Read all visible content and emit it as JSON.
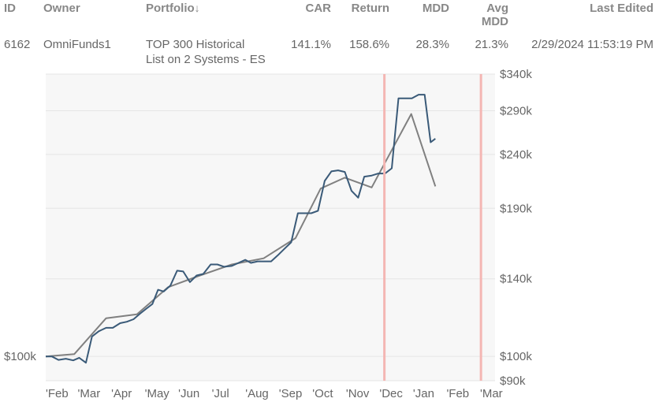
{
  "table": {
    "headers": {
      "id": "ID",
      "owner": "Owner",
      "portfolio": "Portfolio",
      "sort_indicator": "↓",
      "car": "CAR",
      "return": "Return",
      "mdd": "MDD",
      "avg_mdd_line1": "Avg",
      "avg_mdd_line2": "MDD",
      "last_edited": "Last Edited"
    },
    "row": {
      "id": "6162",
      "owner": "OmniFunds1",
      "portfolio_line1": "TOP 300 Historical",
      "portfolio_line2": "List on 2 Systems - ES",
      "car": "141.1%",
      "return": "158.6%",
      "mdd": "28.3%",
      "avg_mdd": "21.3%",
      "last_edited": "2/29/2024 11:53:19 PM"
    }
  },
  "chart_data": {
    "type": "line",
    "y_scale": "log",
    "ylim": [
      90000,
      340000
    ],
    "right_ticks": [
      {
        "value": 340000,
        "label": "$340k"
      },
      {
        "value": 290000,
        "label": "$290k"
      },
      {
        "value": 240000,
        "label": "$240k"
      },
      {
        "value": 190000,
        "label": "$190k"
      },
      {
        "value": 140000,
        "label": "$140k"
      },
      {
        "value": 100000,
        "label": "$100k"
      },
      {
        "value": 90000,
        "label": "$90k"
      }
    ],
    "left_tick": {
      "value": 100000,
      "label": "$100k"
    },
    "x_labels": [
      "'Feb",
      "'Mar",
      "'Apr",
      "'May",
      "'Jun",
      "'Jul",
      "'Aug",
      "'Sep",
      "'Oct",
      "'Nov",
      "'Dec",
      "'Jan",
      "'Feb",
      "'Mar"
    ],
    "x_range": [
      0,
      13.4
    ],
    "highlight_lines_x": [
      10.1,
      12.98
    ],
    "series": [
      {
        "role": "equity",
        "color": "#3a5a78",
        "points": [
          [
            0.0,
            100000
          ],
          [
            0.18,
            100000
          ],
          [
            0.38,
            98500
          ],
          [
            0.6,
            99000
          ],
          [
            0.82,
            98300
          ],
          [
            1.0,
            99400
          ],
          [
            1.2,
            97300
          ],
          [
            1.38,
            109000
          ],
          [
            1.58,
            111500
          ],
          [
            1.8,
            113200
          ],
          [
            2.0,
            113200
          ],
          [
            2.22,
            115500
          ],
          [
            2.42,
            116200
          ],
          [
            2.62,
            117500
          ],
          [
            2.82,
            120500
          ],
          [
            3.0,
            123000
          ],
          [
            3.18,
            125500
          ],
          [
            3.35,
            133500
          ],
          [
            3.52,
            132500
          ],
          [
            3.72,
            136000
          ],
          [
            3.92,
            145000
          ],
          [
            4.1,
            144500
          ],
          [
            4.3,
            138000
          ],
          [
            4.5,
            142000
          ],
          [
            4.7,
            143000
          ],
          [
            4.92,
            149000
          ],
          [
            5.12,
            149000
          ],
          [
            5.32,
            147500
          ],
          [
            5.55,
            148000
          ],
          [
            5.75,
            150000
          ],
          [
            5.95,
            152000
          ],
          [
            6.12,
            150000
          ],
          [
            6.32,
            151000
          ],
          [
            6.52,
            151000
          ],
          [
            6.72,
            151000
          ],
          [
            6.92,
            155000
          ],
          [
            7.1,
            159000
          ],
          [
            7.32,
            164000
          ],
          [
            7.52,
            186000
          ],
          [
            7.72,
            186000
          ],
          [
            7.92,
            186000
          ],
          [
            8.12,
            188000
          ],
          [
            8.32,
            214000
          ],
          [
            8.52,
            223000
          ],
          [
            8.72,
            224000
          ],
          [
            8.92,
            222500
          ],
          [
            9.12,
            205000
          ],
          [
            9.32,
            199000
          ],
          [
            9.5,
            218000
          ],
          [
            9.72,
            219000
          ],
          [
            9.92,
            221000
          ],
          [
            10.12,
            221000
          ],
          [
            10.32,
            226000
          ],
          [
            10.52,
            306000
          ],
          [
            10.72,
            306000
          ],
          [
            10.92,
            306000
          ],
          [
            11.12,
            311000
          ],
          [
            11.3,
            311000
          ],
          [
            11.48,
            253000
          ],
          [
            11.62,
            257000
          ]
        ]
      },
      {
        "role": "benchmark",
        "color": "#808080",
        "points": [
          [
            0.0,
            100000
          ],
          [
            0.85,
            101000
          ],
          [
            1.8,
            118000
          ],
          [
            2.72,
            120000
          ],
          [
            3.65,
            135000
          ],
          [
            4.6,
            142000
          ],
          [
            5.55,
            149000
          ],
          [
            6.5,
            153000
          ],
          [
            7.45,
            167000
          ],
          [
            8.2,
            207000
          ],
          [
            8.92,
            217000
          ],
          [
            9.72,
            208000
          ],
          [
            10.9,
            286000
          ],
          [
            11.62,
            209000
          ]
        ]
      }
    ]
  },
  "colors": {
    "plot_background": "#f7f7f7",
    "gridline": "#e6e6e6",
    "highlight": "#f4b6b3",
    "axis_text": "#666666"
  }
}
